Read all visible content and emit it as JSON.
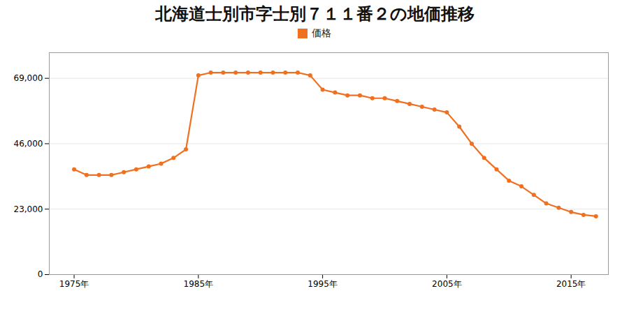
{
  "chart_data": {
    "type": "line",
    "title": "北海道士別市字士別７１１番２の地価推移",
    "x": [
      1975,
      1976,
      1977,
      1978,
      1979,
      1980,
      1981,
      1982,
      1983,
      1984,
      1985,
      1986,
      1987,
      1988,
      1989,
      1990,
      1991,
      1992,
      1993,
      1994,
      1995,
      1996,
      1997,
      1998,
      1999,
      2000,
      2001,
      2002,
      2003,
      2004,
      2005,
      2006,
      2007,
      2008,
      2009,
      2010,
      2011,
      2012,
      2013,
      2014,
      2015,
      2016,
      2017
    ],
    "series": [
      {
        "name": "価格",
        "color": "#f07020",
        "marker": "circle",
        "values": [
          37000,
          35000,
          35000,
          35000,
          36000,
          37000,
          38000,
          39000,
          41000,
          44000,
          70000,
          71000,
          71000,
          71000,
          71000,
          71000,
          71000,
          71000,
          71000,
          70000,
          65000,
          64000,
          63000,
          63000,
          62000,
          62000,
          61000,
          60000,
          59000,
          58000,
          57000,
          52000,
          46000,
          41000,
          37000,
          33000,
          31000,
          28000,
          25000,
          23500,
          22000,
          21000,
          20500
        ]
      }
    ],
    "xlim": [
      1973,
      2018
    ],
    "xticks": [
      {
        "value": 1975,
        "label": "1975年"
      },
      {
        "value": 1985,
        "label": "1985年"
      },
      {
        "value": 1995,
        "label": "1995年"
      },
      {
        "value": 2005,
        "label": "2005年"
      },
      {
        "value": 2015,
        "label": "2015年"
      }
    ],
    "ylim": [
      0,
      78000
    ],
    "yticks": [
      0,
      {
        "value": 23000,
        "label": "23,000"
      },
      {
        "value": 46000,
        "label": "46,000"
      },
      {
        "value": 69000,
        "label": "69,000"
      }
    ],
    "grid": true,
    "legend": "top"
  }
}
